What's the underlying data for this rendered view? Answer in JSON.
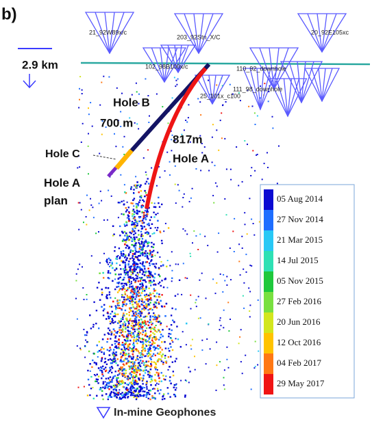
{
  "panel_label": "b)",
  "scale_label": "2.9 km",
  "geophones": [
    {
      "label": "21_92W89x/c"
    },
    {
      "label": "203_92Stn_X/C"
    },
    {
      "label": "20_92E105xc"
    },
    {
      "label": "102_98B100x/c"
    },
    {
      "label": "25_101x_c100"
    },
    {
      "label": "110_92_downhole"
    },
    {
      "label": "111_98_downhole"
    }
  ],
  "holes": {
    "hole_b": {
      "label": "Hole B",
      "length": "700 m"
    },
    "hole_a": {
      "label": "Hole A",
      "length": "817m"
    },
    "hole_c": {
      "label": "Hole C"
    },
    "hole_a_plan": {
      "label": "Hole A plan"
    }
  },
  "colorbar": {
    "entries": [
      {
        "label": "05 Aug 2014",
        "color": "#0a0ad2"
      },
      {
        "label": "27 Nov 2014",
        "color": "#1e6eff"
      },
      {
        "label": "21 Mar 2015",
        "color": "#28c8f5"
      },
      {
        "label": "14 Jul 2015",
        "color": "#2ee0b4"
      },
      {
        "label": "05 Nov 2015",
        "color": "#1ec83c"
      },
      {
        "label": "27 Feb 2016",
        "color": "#78e040"
      },
      {
        "label": "20 Jun 2016",
        "color": "#d2e61e"
      },
      {
        "label": "12 Oct 2016",
        "color": "#ffc300"
      },
      {
        "label": "04 Feb 2017",
        "color": "#ff7814"
      },
      {
        "label": "29 May 2017",
        "color": "#f01414"
      }
    ]
  },
  "legend": {
    "label": "In-mine Geophones"
  }
}
